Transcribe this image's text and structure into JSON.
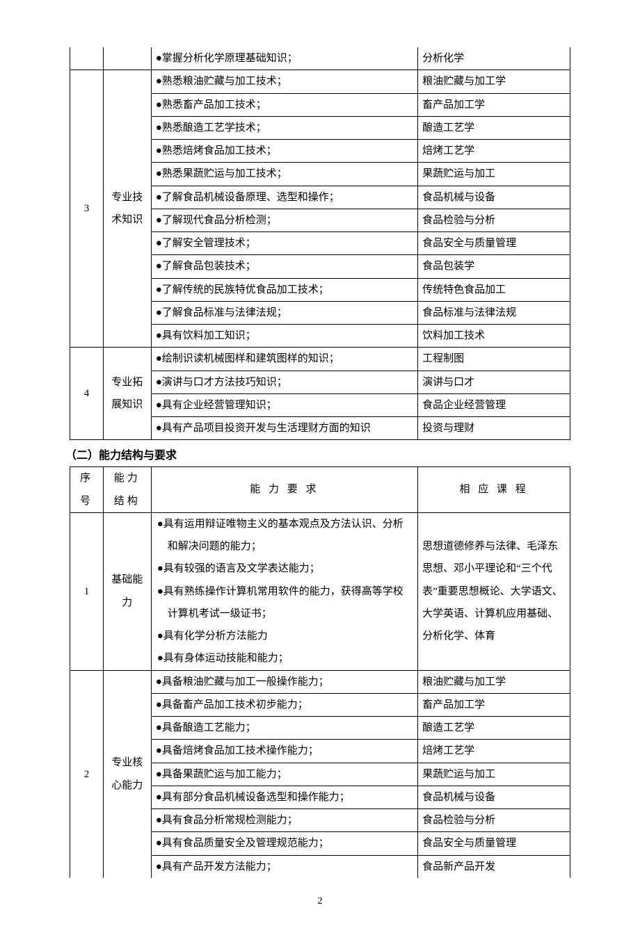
{
  "page_number": "2",
  "colors": {
    "text": "#000000",
    "background": "#ffffff",
    "border": "#000000"
  },
  "table1": {
    "partialRow": {
      "item": "●掌握分析化学原理基础知识；",
      "course": "分析化学"
    },
    "rows": [
      {
        "seq": "3",
        "cat": "专业技术知识",
        "items": [
          {
            "text": "●熟悉粮油贮藏与加工技术；",
            "course": "粮油贮藏与加工学"
          },
          {
            "text": "●熟悉畜产品加工技术；",
            "course": "畜产品加工学"
          },
          {
            "text": "●熟悉酿造工艺学技术；",
            "course": "酿造工艺学"
          },
          {
            "text": "●熟悉焙烤食品加工技术；",
            "course": "焙烤工艺学"
          },
          {
            "text": "●熟悉果蔬贮运与加工技术；",
            "course": "果蔬贮运与加工"
          },
          {
            "text": "●了解食品机械设备原理、选型和操作；",
            "course": "食品机械与设备"
          },
          {
            "text": "●了解现代食品分析检测；",
            "course": "食品检验与分析"
          },
          {
            "text": "●了解安全管理技术；",
            "course": "食品安全与质量管理"
          },
          {
            "text": "●了解食品包装技术；",
            "course": "食品包装学"
          },
          {
            "text": "●了解传统的民族特优食品加工技术；",
            "course": "传统特色食品加工"
          },
          {
            "text": "●了解食品标准与法律法规；",
            "course": "食品标准与法律法规"
          },
          {
            "text": "●具有饮料加工知识；",
            "course": "饮料加工技术"
          }
        ]
      },
      {
        "seq": "4",
        "cat": "专业拓展知识",
        "items": [
          {
            "text": "●绘制识读机械图样和建筑图样的知识；",
            "course": "工程制图"
          },
          {
            "text": "●演讲与口才方法技巧知识；",
            "course": "演讲与口才"
          },
          {
            "text": "●具有企业经营管理知识；",
            "course": "食品企业经营管理"
          },
          {
            "text": "●具有产品项目投资开发与生活理财方面的知识",
            "course": "投资与理财"
          }
        ]
      }
    ]
  },
  "section2": {
    "title": "（二）能力结构与要求",
    "headers": {
      "seq": "序号",
      "cat": "能力结构",
      "desc": "能 力 要 求",
      "course": "相 应 课 程"
    },
    "rows": [
      {
        "seq": "1",
        "cat": "基础能力",
        "items": [
          "●具有运用辩证唯物主义的基本观点及方法认识、分析",
          "　和解决问题的能力；",
          "●具有较强的语言及文学表达能力；",
          "●具有熟练操作计算机常用软件的能力，获得高等学校",
          "　计算机考试一级证书；",
          "●具有化学分析方法能力",
          "●具有身体运动技能和能力；"
        ],
        "course": "思想道德修养与法律、毛泽东思想、邓小平理论和“三个代表”重要思想概论、大学语文、大学英语、计算机应用基础、分析化学、体育"
      },
      {
        "seq": "2",
        "cat": "专业核心能力",
        "items": [
          {
            "text": "●具备粮油贮藏与加工一般操作能力；",
            "course": "粮油贮藏与加工学"
          },
          {
            "text": "●具备畜产品加工技术初步能力；",
            "course": "畜产品加工学"
          },
          {
            "text": "●具备酿造工艺能力；",
            "course": "酿造工艺学"
          },
          {
            "text": "●具备焙烤食品加工技术操作能力；",
            "course": "焙烤工艺学"
          },
          {
            "text": "●具备果蔬贮运与加工能力；",
            "course": "果蔬贮运与加工"
          },
          {
            "text": "●具有部分食品机械设备选型和操作能力；",
            "course": "食品机械与设备"
          },
          {
            "text": "●具有食品分析常规检测能力；",
            "course": "食品检验与分析"
          },
          {
            "text": "●具有食品质量安全及管理规范能力；",
            "course": "食品安全与质量管理"
          },
          {
            "text": "●具有产品开发方法能力；",
            "course": "食品新产品开发"
          }
        ]
      }
    ]
  }
}
